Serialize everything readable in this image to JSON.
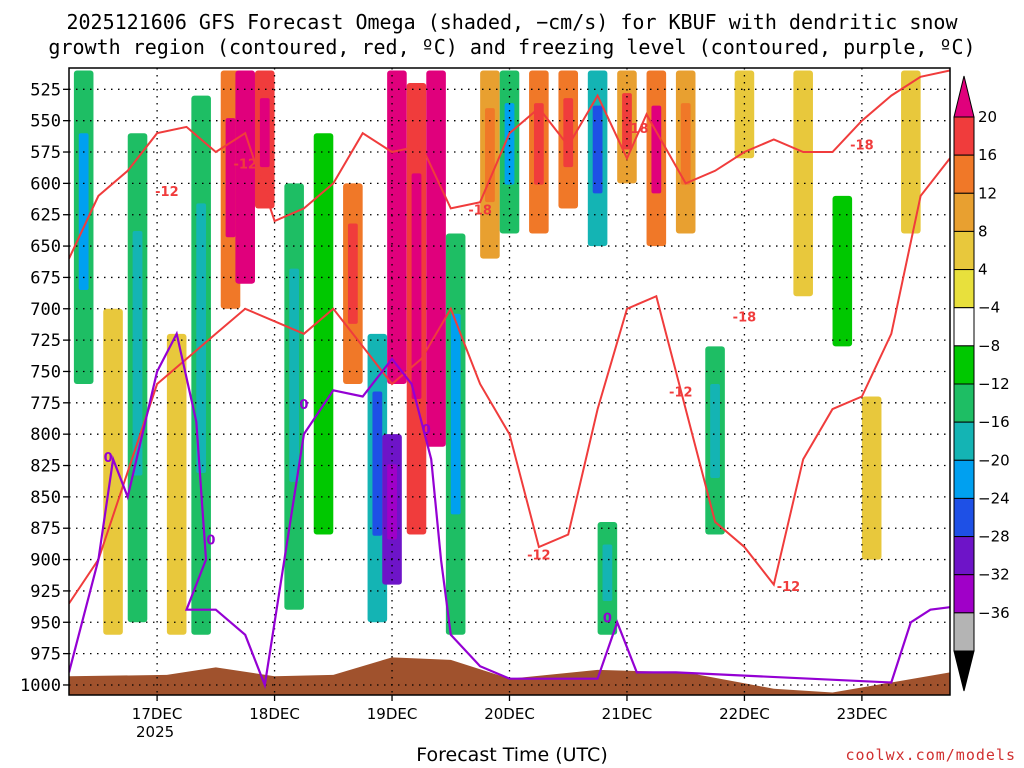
{
  "chart_data": {
    "type": "heatmap",
    "title_line1": "2025121606 GFS Forecast Omega (shaded, −cm/s) for KBUF with dendritic snow",
    "title_line2": "growth region (contoured, red, ºC) and freezing level (contoured, purple, ºC)",
    "xlabel": "Forecast Time (UTC)",
    "credit": "coolwx.com/models",
    "x_ticks": [
      {
        "label": "17DEC",
        "sublabel": "2025",
        "hour": 18
      },
      {
        "label": "18DEC",
        "hour": 42
      },
      {
        "label": "19DEC",
        "hour": 66
      },
      {
        "label": "20DEC",
        "hour": 90
      },
      {
        "label": "21DEC",
        "hour": 114
      },
      {
        "label": "22DEC",
        "hour": 138
      },
      {
        "label": "23DEC",
        "hour": 162
      }
    ],
    "x_range_hours": [
      0,
      180
    ],
    "y_ticks": [
      525,
      550,
      575,
      600,
      625,
      650,
      675,
      700,
      725,
      750,
      775,
      800,
      825,
      850,
      875,
      900,
      925,
      950,
      975,
      1000
    ],
    "y_range_hpa": [
      508,
      1008
    ],
    "colorbar": {
      "tick_labels": [
        "20",
        "16",
        "12",
        "8",
        "4",
        "−4",
        "−8",
        "−12",
        "−16",
        "−20",
        "−24",
        "−28",
        "−32",
        "−36"
      ],
      "colors": [
        "#e0007c",
        "#f03c3c",
        "#f07828",
        "#e8a030",
        "#e8c83c",
        "#e8e03c",
        "#ffffff",
        "#00c800",
        "#1ebe64",
        "#14b4b4",
        "#00a0f0",
        "#1e50e6",
        "#6e14c8",
        "#a000c8",
        "#b4b4b4",
        "#000000"
      ]
    },
    "red_contour_label": "-12",
    "red_contour_label2": "-18",
    "purple_contour_label": "0",
    "omega_columns": [
      {
        "hour": 3,
        "p_top": 510,
        "p_bot": 760,
        "value": -10
      },
      {
        "hour": 9,
        "p_top": 700,
        "p_bot": 960,
        "value": 5
      },
      {
        "hour": 14,
        "p_top": 560,
        "p_bot": 950,
        "value": -8
      },
      {
        "hour": 22,
        "p_top": 720,
        "p_bot": 960,
        "value": 6
      },
      {
        "hour": 27,
        "p_top": 530,
        "p_bot": 960,
        "value": -9
      },
      {
        "hour": 33,
        "p_top": 510,
        "p_bot": 700,
        "value": 14
      },
      {
        "hour": 36,
        "p_top": 510,
        "p_bot": 680,
        "value": 20
      },
      {
        "hour": 40,
        "p_top": 510,
        "p_bot": 620,
        "value": 18
      },
      {
        "hour": 46,
        "p_top": 600,
        "p_bot": 940,
        "value": -9
      },
      {
        "hour": 52,
        "p_top": 560,
        "p_bot": 880,
        "value": -7
      },
      {
        "hour": 58,
        "p_top": 600,
        "p_bot": 760,
        "value": 13
      },
      {
        "hour": 63,
        "p_top": 720,
        "p_bot": 950,
        "value": -14
      },
      {
        "hour": 66,
        "p_top": 800,
        "p_bot": 920,
        "value": -24
      },
      {
        "hour": 67,
        "p_top": 510,
        "p_bot": 760,
        "value": 20
      },
      {
        "hour": 71,
        "p_top": 520,
        "p_bot": 880,
        "value": 18
      },
      {
        "hour": 75,
        "p_top": 510,
        "p_bot": 810,
        "value": 22
      },
      {
        "hour": 79,
        "p_top": 640,
        "p_bot": 960,
        "value": -11
      },
      {
        "hour": 86,
        "p_top": 510,
        "p_bot": 660,
        "value": 8
      },
      {
        "hour": 90,
        "p_top": 510,
        "p_bot": 640,
        "value": -10
      },
      {
        "hour": 96,
        "p_top": 510,
        "p_bot": 640,
        "value": 12
      },
      {
        "hour": 102,
        "p_top": 510,
        "p_bot": 620,
        "value": 13
      },
      {
        "hour": 108,
        "p_top": 510,
        "p_bot": 650,
        "value": -14
      },
      {
        "hour": 110,
        "p_top": 870,
        "p_bot": 960,
        "value": -9
      },
      {
        "hour": 114,
        "p_top": 510,
        "p_bot": 600,
        "value": 10
      },
      {
        "hour": 120,
        "p_top": 510,
        "p_bot": 650,
        "value": 14
      },
      {
        "hour": 126,
        "p_top": 510,
        "p_bot": 640,
        "value": 9
      },
      {
        "hour": 132,
        "p_top": 730,
        "p_bot": 880,
        "value": -9
      },
      {
        "hour": 138,
        "p_top": 510,
        "p_bot": 580,
        "value": 6
      },
      {
        "hour": 150,
        "p_top": 510,
        "p_bot": 690,
        "value": 7
      },
      {
        "hour": 158,
        "p_top": 610,
        "p_bot": 730,
        "value": -7
      },
      {
        "hour": 164,
        "p_top": 770,
        "p_bot": 900,
        "value": 5
      },
      {
        "hour": 172,
        "p_top": 510,
        "p_bot": 640,
        "value": 6
      }
    ],
    "dgz_upper": [
      {
        "hour": 0,
        "p": 660
      },
      {
        "hour": 6,
        "p": 610
      },
      {
        "hour": 12,
        "p": 590
      },
      {
        "hour": 18,
        "p": 560
      },
      {
        "hour": 24,
        "p": 555
      },
      {
        "hour": 30,
        "p": 575
      },
      {
        "hour": 36,
        "p": 560
      },
      {
        "hour": 42,
        "p": 630
      },
      {
        "hour": 48,
        "p": 620
      },
      {
        "hour": 54,
        "p": 600
      },
      {
        "hour": 60,
        "p": 560
      },
      {
        "hour": 66,
        "p": 575
      },
      {
        "hour": 72,
        "p": 570
      },
      {
        "hour": 78,
        "p": 620
      },
      {
        "hour": 84,
        "p": 615
      },
      {
        "hour": 90,
        "p": 560
      },
      {
        "hour": 96,
        "p": 540
      },
      {
        "hour": 102,
        "p": 570
      },
      {
        "hour": 108,
        "p": 530
      },
      {
        "hour": 114,
        "p": 580
      },
      {
        "hour": 118,
        "p": 545
      },
      {
        "hour": 126,
        "p": 600
      },
      {
        "hour": 132,
        "p": 590
      },
      {
        "hour": 138,
        "p": 575
      },
      {
        "hour": 144,
        "p": 565
      },
      {
        "hour": 150,
        "p": 575
      },
      {
        "hour": 156,
        "p": 575
      },
      {
        "hour": 162,
        "p": 550
      },
      {
        "hour": 168,
        "p": 530
      },
      {
        "hour": 174,
        "p": 515
      },
      {
        "hour": 180,
        "p": 510
      }
    ],
    "dgz_lower": [
      {
        "hour": 0,
        "p": 935
      },
      {
        "hour": 6,
        "p": 900
      },
      {
        "hour": 12,
        "p": 830
      },
      {
        "hour": 18,
        "p": 760
      },
      {
        "hour": 24,
        "p": 740
      },
      {
        "hour": 30,
        "p": 720
      },
      {
        "hour": 36,
        "p": 700
      },
      {
        "hour": 42,
        "p": 710
      },
      {
        "hour": 48,
        "p": 720
      },
      {
        "hour": 54,
        "p": 700
      },
      {
        "hour": 60,
        "p": 730
      },
      {
        "hour": 66,
        "p": 760
      },
      {
        "hour": 72,
        "p": 740
      },
      {
        "hour": 78,
        "p": 700
      },
      {
        "hour": 84,
        "p": 760
      },
      {
        "hour": 90,
        "p": 800
      },
      {
        "hour": 96,
        "p": 890
      },
      {
        "hour": 102,
        "p": 880
      },
      {
        "hour": 108,
        "p": 780
      },
      {
        "hour": 114,
        "p": 700
      },
      {
        "hour": 120,
        "p": 690
      },
      {
        "hour": 126,
        "p": 780
      },
      {
        "hour": 132,
        "p": 870
      },
      {
        "hour": 138,
        "p": 890
      },
      {
        "hour": 144,
        "p": 920
      },
      {
        "hour": 150,
        "p": 820
      },
      {
        "hour": 156,
        "p": 780
      },
      {
        "hour": 162,
        "p": 770
      },
      {
        "hour": 168,
        "p": 720
      },
      {
        "hour": 174,
        "p": 610
      },
      {
        "hour": 180,
        "p": 580
      }
    ],
    "freezing_level": [
      {
        "hour": 0,
        "p": 990
      },
      {
        "hour": 6,
        "p": 900
      },
      {
        "hour": 9,
        "p": 820
      },
      {
        "hour": 12,
        "p": 850
      },
      {
        "hour": 18,
        "p": 750
      },
      {
        "hour": 22,
        "p": 720
      },
      {
        "hour": 26,
        "p": 790
      },
      {
        "hour": 28,
        "p": 900
      },
      {
        "hour": 24,
        "p": 940
      },
      {
        "hour": 30,
        "p": 940
      },
      {
        "hour": 36,
        "p": 960
      },
      {
        "hour": 40,
        "p": 1000
      },
      {
        "hour": 44,
        "p": 900
      },
      {
        "hour": 48,
        "p": 800
      },
      {
        "hour": 54,
        "p": 765
      },
      {
        "hour": 60,
        "p": 770
      },
      {
        "hour": 66,
        "p": 740
      },
      {
        "hour": 70,
        "p": 760
      },
      {
        "hour": 74,
        "p": 820
      },
      {
        "hour": 76,
        "p": 900
      },
      {
        "hour": 78,
        "p": 960
      },
      {
        "hour": 84,
        "p": 985
      },
      {
        "hour": 90,
        "p": 995
      },
      {
        "hour": 108,
        "p": 995
      },
      {
        "hour": 112,
        "p": 950
      },
      {
        "hour": 116,
        "p": 990
      },
      {
        "hour": 124,
        "p": 990
      },
      {
        "hour": 168,
        "p": 998
      },
      {
        "hour": 172,
        "p": 950
      },
      {
        "hour": 176,
        "p": 940
      },
      {
        "hour": 180,
        "p": 938
      }
    ],
    "terrain_surface_hpa": [
      {
        "hour": 0,
        "p": 993
      },
      {
        "hour": 20,
        "p": 992
      },
      {
        "hour": 30,
        "p": 986
      },
      {
        "hour": 42,
        "p": 993
      },
      {
        "hour": 54,
        "p": 992
      },
      {
        "hour": 66,
        "p": 978
      },
      {
        "hour": 78,
        "p": 980
      },
      {
        "hour": 90,
        "p": 995
      },
      {
        "hour": 108,
        "p": 988
      },
      {
        "hour": 126,
        "p": 990
      },
      {
        "hour": 144,
        "p": 1003
      },
      {
        "hour": 156,
        "p": 1006
      },
      {
        "hour": 168,
        "p": 998
      },
      {
        "hour": 180,
        "p": 990
      }
    ]
  }
}
